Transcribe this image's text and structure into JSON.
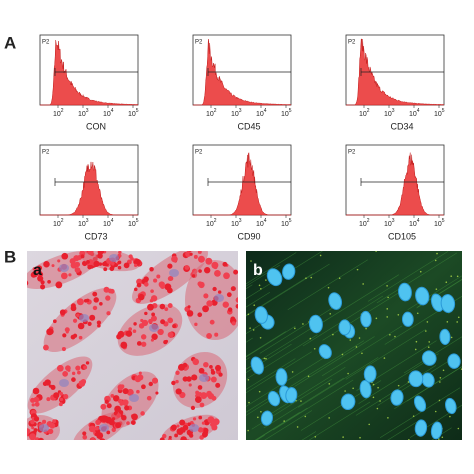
{
  "panel_a": {
    "label": "A",
    "plots": [
      {
        "name": "CON",
        "gate": "P2"
      },
      {
        "name": "CD45",
        "gate": "P2"
      },
      {
        "name": "CD34",
        "gate": "P2"
      },
      {
        "name": "CD73",
        "gate": "P2"
      },
      {
        "name": "CD90",
        "gate": "P2"
      },
      {
        "name": "CD105",
        "gate": "P2"
      }
    ],
    "x_ticks": [
      {
        "base": "10",
        "exp": "2"
      },
      {
        "base": "10",
        "exp": "3"
      },
      {
        "base": "10",
        "exp": "4"
      },
      {
        "base": "10",
        "exp": "5"
      }
    ]
  },
  "panel_b": {
    "label": "B",
    "images": [
      {
        "label": "a"
      },
      {
        "label": "b"
      }
    ]
  }
}
